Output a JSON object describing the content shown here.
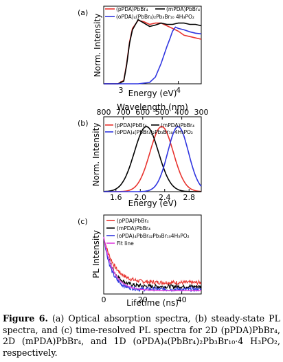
{
  "caption": {
    "label": "Figure 6.",
    "text": "(a) Optical absorption spectra, (b) steady-state PL spectra, and (c) time-resolved PL spectra for 2D (pPDA)PbBr₄, 2D (mPDA)PbBr₄, and 1D (oPDA)₄(PbBr₄)₂Pb₃Br₁₀·4 H₃PO₂, respectively."
  },
  "chart_data": [
    {
      "panel": "(a)",
      "type": "line",
      "xlabel": "Energy (eV)",
      "ylabel": "Norm. Intensity",
      "xlim": [
        2.7,
        4.4
      ],
      "ylim": [
        0,
        1.15
      ],
      "xticks": [
        "3",
        "4"
      ],
      "legend": [
        "(pPDA)PbBr₄",
        "(mPDA)PbBr₄",
        "(oPDA)₄(PbBr₄)₂Pb₃Br₁₀ 4H₃PO₂"
      ],
      "series": [
        {
          "name": "(pPDA)PbBr₄",
          "color": "#e8322d",
          "x": [
            2.7,
            2.95,
            3.05,
            3.1,
            3.15,
            3.2,
            3.3,
            3.4,
            3.5,
            3.6,
            3.7,
            3.8,
            3.9,
            4.0,
            4.1,
            4.2,
            4.3,
            4.4
          ],
          "y": [
            0.0,
            0.0,
            0.05,
            0.3,
            0.62,
            0.82,
            0.94,
            0.92,
            0.88,
            0.9,
            0.9,
            0.86,
            0.82,
            0.78,
            0.72,
            0.7,
            0.68,
            0.66
          ]
        },
        {
          "name": "(mPDA)PbBr₄",
          "color": "#000000",
          "x": [
            2.7,
            2.95,
            3.05,
            3.1,
            3.15,
            3.2,
            3.3,
            3.4,
            3.5,
            3.6,
            3.7,
            3.8,
            3.9,
            4.0,
            4.1,
            4.2,
            4.3,
            4.4
          ],
          "y": [
            0.0,
            0.0,
            0.04,
            0.28,
            0.6,
            0.8,
            0.95,
            0.9,
            0.85,
            0.87,
            0.9,
            0.88,
            0.88,
            0.9,
            0.9,
            0.88,
            0.88,
            0.86
          ]
        },
        {
          "name": "(oPDA)₄(PbBr₄)₂Pb₃Br₁₀ 4H₃PO₂",
          "color": "#2f35e0",
          "x": [
            2.7,
            3.3,
            3.5,
            3.6,
            3.7,
            3.8,
            3.85,
            3.9,
            3.95,
            4.0,
            4.1,
            4.2,
            4.3,
            4.4
          ],
          "y": [
            0.0,
            0.0,
            0.02,
            0.1,
            0.3,
            0.55,
            0.66,
            0.78,
            0.84,
            0.82,
            0.8,
            0.77,
            0.75,
            0.74
          ]
        }
      ]
    },
    {
      "panel": "(b)",
      "type": "line",
      "xlabel": "Energy (eV)",
      "ylabel": "Norm. Intensity",
      "top_xlabel": "Wavelength (nm)",
      "xlim": [
        1.4,
        3.0
      ],
      "ylim": [
        0,
        1.15
      ],
      "xticks": [
        "1.6",
        "2.0",
        "2.4",
        "2.8"
      ],
      "top_xticks": [
        "800",
        "700",
        "600",
        "500",
        "400",
        "300"
      ],
      "legend": [
        "(pPDA)PbBr₄",
        "(mPDA)PbBr₄",
        "(oPDA)₄(PbBr₄)₂Pb₃Br₁₀ 4H₃PO₂"
      ],
      "series": [
        {
          "name": "(pPDA)PbBr₄",
          "color": "#e8322d",
          "center": 2.35,
          "width": 0.27
        },
        {
          "name": "(mPDA)PbBr₄",
          "color": "#000000",
          "center": 2.1,
          "width": 0.28
        },
        {
          "name": "(oPDA)₄(PbBr₄)₂Pb₃Br₁₀ 4H₃PO₂",
          "color": "#2f35e0",
          "center": 2.62,
          "width": 0.24
        }
      ]
    },
    {
      "panel": "(c)",
      "type": "line",
      "xlabel": "Lifetime (ns)",
      "ylabel": "PL Intensity",
      "xlim": [
        0,
        50
      ],
      "xticks": [
        "0",
        "20",
        "40"
      ],
      "legend": [
        "(pPDA)PbBr₄",
        "(mPDA)PbBr₄",
        "(oPDA)₄PbBr₄₂Pb₃Br₁₀4H₃PO₂",
        "Fit line"
      ],
      "series": [
        {
          "name": "(pPDA)PbBr₄",
          "color": "#e8322d",
          "tau": 5.5,
          "floor": 0.2
        },
        {
          "name": "(mPDA)PbBr₄",
          "color": "#000000",
          "tau": 4.5,
          "floor": 0.13
        },
        {
          "name": "(oPDA)₄PbBr₄₂Pb₃Br₁₀4H₃PO₂",
          "color": "#2f35e0",
          "tau": 4.0,
          "floor": 0.08
        },
        {
          "name": "Fit line",
          "color": "#e040e0",
          "tau": 5.0,
          "floor": 0.06
        }
      ]
    }
  ]
}
